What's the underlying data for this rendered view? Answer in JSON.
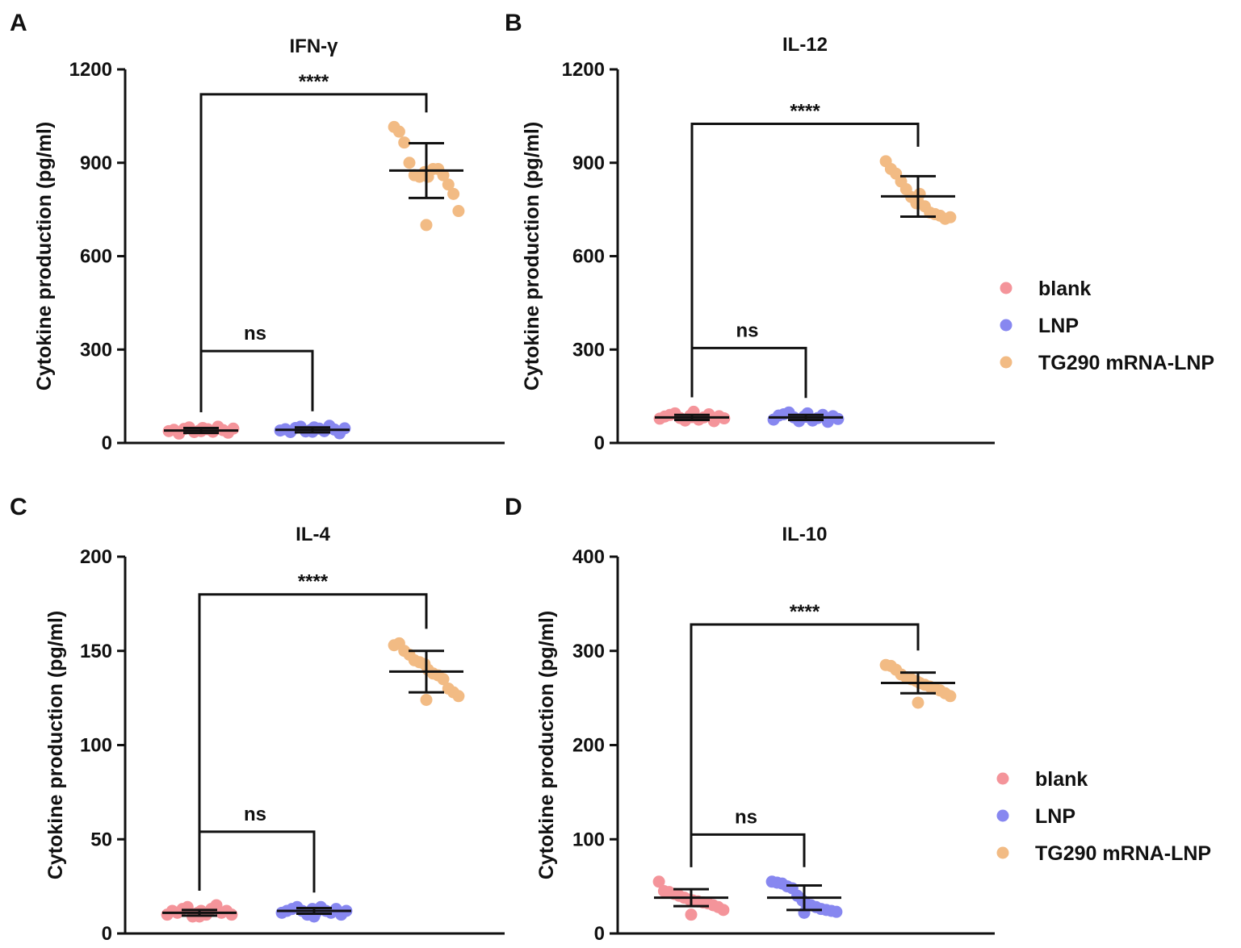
{
  "colors": {
    "blank": "#f4949a",
    "LNP": "#8787f0",
    "TG290 mRNA-LNP": "#f2bb84"
  },
  "chart_data": [
    {
      "panel": "A",
      "type": "scatter",
      "title": "IFN-γ",
      "ylabel": "Cytokine production (pg/ml)",
      "ylim": [
        0,
        1200
      ],
      "yticks": [
        0,
        300,
        600,
        900,
        1200
      ],
      "groups": [
        "blank",
        "LNP",
        "TG290 mRNA-LNP"
      ],
      "series": [
        {
          "name": "blank",
          "mean": 40,
          "sd": 8,
          "points": [
            38,
            42,
            30,
            45,
            50,
            35,
            40,
            48,
            44,
            36,
            52,
            41,
            33,
            46,
            38
          ]
        },
        {
          "name": "LNP",
          "mean": 42,
          "sd": 8,
          "points": [
            40,
            44,
            35,
            48,
            52,
            37,
            42,
            50,
            46,
            38,
            55,
            43,
            31,
            47,
            36
          ]
        },
        {
          "name": "TG290 mRNA-LNP",
          "mean": 875,
          "sd": 88,
          "points": [
            1015,
            1000,
            965,
            900,
            860,
            855,
            870,
            855,
            880,
            880,
            860,
            830,
            800,
            745,
            700
          ]
        }
      ],
      "comparisons": [
        {
          "label": "****",
          "groups": [
            "blank",
            "TG290 mRNA-LNP"
          ],
          "y": 1120
        },
        {
          "label": "ns",
          "groups": [
            "blank",
            "LNP"
          ],
          "y": 295
        }
      ]
    },
    {
      "panel": "B",
      "type": "scatter",
      "title": "IL-12",
      "ylabel": "Cytokine production (pg/ml)",
      "ylim": [
        0,
        1200
      ],
      "yticks": [
        0,
        300,
        600,
        900,
        1200
      ],
      "groups": [
        "blank",
        "LNP",
        "TG290 mRNA-LNP"
      ],
      "series": [
        {
          "name": "blank",
          "mean": 82,
          "sd": 8,
          "points": [
            78,
            85,
            90,
            95,
            80,
            72,
            88,
            100,
            75,
            82,
            92,
            70,
            86,
            79,
            83
          ]
        },
        {
          "name": "LNP",
          "mean": 82,
          "sd": 8,
          "points": [
            75,
            88,
            92,
            98,
            82,
            70,
            85,
            95,
            72,
            80,
            90,
            68,
            86,
            77,
            84
          ]
        },
        {
          "name": "TG290 mRNA-LNP",
          "mean": 792,
          "sd": 65,
          "points": [
            905,
            880,
            865,
            840,
            815,
            790,
            770,
            800,
            760,
            740,
            735,
            730,
            720,
            725,
            775
          ]
        }
      ],
      "comparisons": [
        {
          "label": "****",
          "groups": [
            "blank",
            "TG290 mRNA-LNP"
          ],
          "y": 1025
        },
        {
          "label": "ns",
          "groups": [
            "blank",
            "LNP"
          ],
          "y": 305
        }
      ]
    },
    {
      "panel": "C",
      "type": "scatter",
      "title": "IL-4",
      "ylabel": "Cytokine production (pg/ml)",
      "ylim": [
        0,
        200
      ],
      "yticks": [
        0,
        50,
        100,
        150,
        200
      ],
      "groups": [
        "blank",
        "LNP",
        "TG290 mRNA-LNP"
      ],
      "series": [
        {
          "name": "blank",
          "mean": 11,
          "sd": 1.5,
          "points": [
            10,
            12,
            11,
            13,
            14,
            9,
            11,
            12,
            10,
            13,
            15,
            11,
            12,
            10,
            9
          ]
        },
        {
          "name": "LNP",
          "mean": 12,
          "sd": 1.5,
          "points": [
            11,
            12,
            13,
            14,
            12,
            10,
            13,
            11,
            14,
            12,
            11,
            13,
            10,
            12,
            9
          ]
        },
        {
          "name": "TG290 mRNA-LNP",
          "mean": 139,
          "sd": 11,
          "points": [
            153,
            154,
            150,
            148,
            145,
            144,
            143,
            140,
            138,
            137,
            135,
            130,
            128,
            126,
            124
          ]
        }
      ],
      "comparisons": [
        {
          "label": "****",
          "groups": [
            "blank",
            "TG290 mRNA-LNP"
          ],
          "y": 180
        },
        {
          "label": "ns",
          "groups": [
            "blank",
            "LNP"
          ],
          "y": 54
        }
      ]
    },
    {
      "panel": "D",
      "type": "scatter",
      "title": "IL-10",
      "ylabel": "Cytokine production (pg/ml)",
      "ylim": [
        0,
        400
      ],
      "yticks": [
        0,
        100,
        200,
        300,
        400
      ],
      "groups": [
        "blank",
        "LNP",
        "TG290 mRNA-LNP"
      ],
      "series": [
        {
          "name": "blank",
          "mean": 38,
          "sd": 9,
          "points": [
            55,
            45,
            44,
            42,
            40,
            38,
            36,
            35,
            34,
            33,
            32,
            30,
            28,
            25,
            20
          ]
        },
        {
          "name": "LNP",
          "mean": 38,
          "sd": 13,
          "points": [
            55,
            54,
            53,
            50,
            48,
            40,
            35,
            32,
            30,
            28,
            26,
            25,
            24,
            23,
            22
          ]
        },
        {
          "name": "TG290 mRNA-LNP",
          "mean": 266,
          "sd": 11,
          "points": [
            285,
            284,
            280,
            275,
            272,
            270,
            268,
            266,
            264,
            262,
            260,
            258,
            255,
            252,
            245
          ]
        }
      ],
      "comparisons": [
        {
          "label": "****",
          "groups": [
            "blank",
            "TG290 mRNA-LNP"
          ],
          "y": 328
        },
        {
          "label": "ns",
          "groups": [
            "blank",
            "LNP"
          ],
          "y": 105
        }
      ]
    }
  ],
  "legends": [
    {
      "items": [
        "blank",
        "LNP",
        "TG290 mRNA-LNP"
      ]
    },
    {
      "items": [
        "blank",
        "LNP",
        "TG290 mRNA-LNP"
      ]
    }
  ]
}
